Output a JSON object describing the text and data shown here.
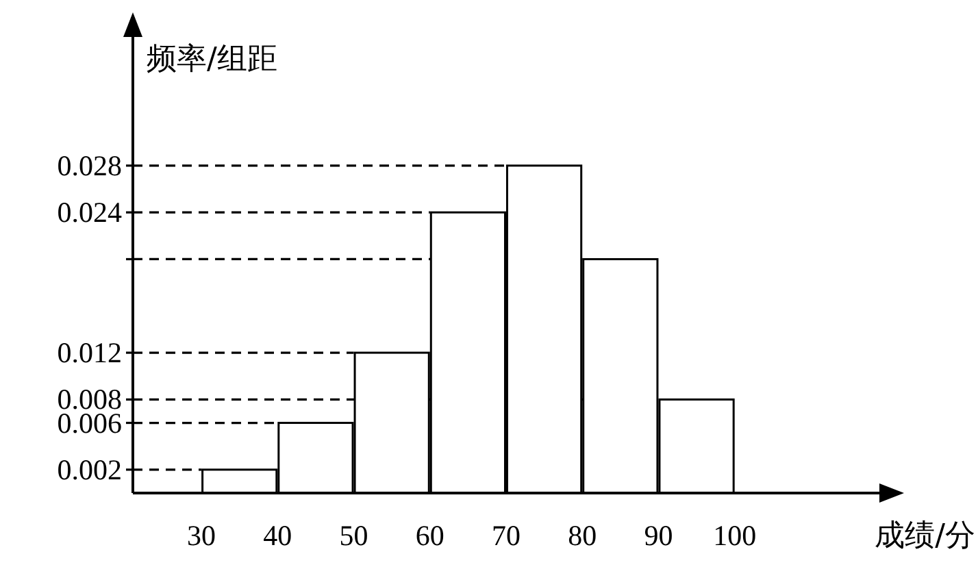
{
  "chart_data": {
    "type": "histogram",
    "xlabel": "成绩/分",
    "ylabel": "频率/组距",
    "bins": [
      30,
      40,
      50,
      60,
      70,
      80,
      90,
      100
    ],
    "values": [
      0.002,
      0.006,
      0.012,
      0.024,
      0.028,
      0.02,
      0.008
    ],
    "color": "#ffffff",
    "xlim": [
      21,
      119
    ],
    "ylim": [
      0,
      0.039
    ],
    "xticks": [
      30,
      40,
      50,
      60,
      70,
      80,
      90,
      100
    ],
    "yticks": [
      0.002,
      0.006,
      0.008,
      0.012,
      {
        "value": 0.02,
        "label": null
      },
      0.024,
      0.028
    ],
    "ref_lines": [
      {
        "axis": "y",
        "value": 0.002,
        "line_style": "dashed",
        "color": "#000000"
      },
      {
        "axis": "y",
        "value": 0.006,
        "line_style": "dashed",
        "color": "#000000"
      },
      {
        "axis": "y",
        "value": 0.008,
        "line_style": "dashed",
        "color": "#000000"
      },
      {
        "axis": "y",
        "value": 0.012,
        "line_style": "dashed",
        "color": "#000000"
      },
      {
        "axis": "y",
        "value": 0.02,
        "line_style": "dashed",
        "color": "#000000"
      },
      {
        "axis": "y",
        "value": 0.024,
        "line_style": "dashed",
        "color": "#000000"
      },
      {
        "axis": "y",
        "value": 0.028,
        "line_style": "dashed",
        "color": "#000000"
      }
    ]
  }
}
